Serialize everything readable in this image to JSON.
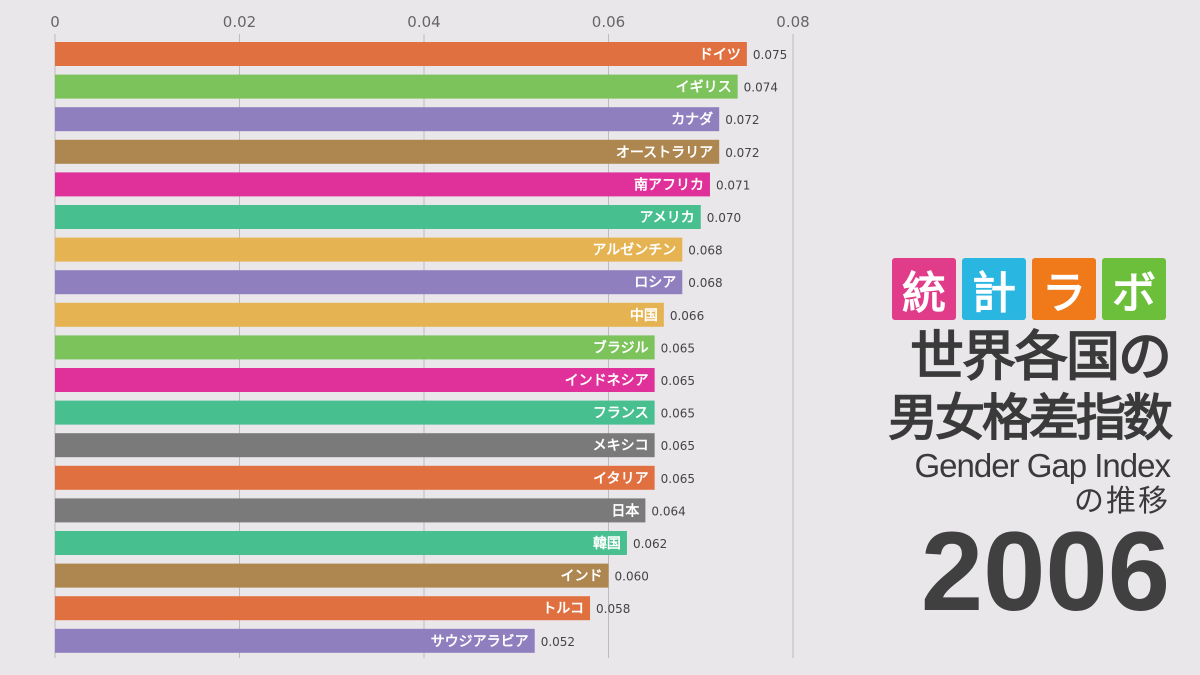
{
  "chart_data": {
    "type": "bar",
    "orientation": "horizontal",
    "xlim": [
      0,
      0.08
    ],
    "ticks": [
      "0",
      "0.02",
      "0.04",
      "0.06",
      "0.08"
    ],
    "tick_values": [
      0,
      0.02,
      0.04,
      0.06,
      0.08
    ],
    "grid": true,
    "bars": [
      {
        "label": "ドイツ",
        "value": 0.075,
        "value_text": "0.075",
        "color": "#e07040"
      },
      {
        "label": "イギリス",
        "value": 0.074,
        "value_text": "0.074",
        "color": "#7bc35a"
      },
      {
        "label": "カナダ",
        "value": 0.072,
        "value_text": "0.072",
        "color": "#8f7fbf"
      },
      {
        "label": "オーストラリア",
        "value": 0.072,
        "value_text": "0.072",
        "color": "#ad8650"
      },
      {
        "label": "南アフリカ",
        "value": 0.071,
        "value_text": "0.071",
        "color": "#e0309a"
      },
      {
        "label": "アメリカ",
        "value": 0.07,
        "value_text": "0.070",
        "color": "#47bf8f"
      },
      {
        "label": "アルゼンチン",
        "value": 0.068,
        "value_text": "0.068",
        "color": "#e5b352"
      },
      {
        "label": "ロシア",
        "value": 0.068,
        "value_text": "0.068",
        "color": "#8f7fbf"
      },
      {
        "label": "中国",
        "value": 0.066,
        "value_text": "0.066",
        "color": "#e5b352"
      },
      {
        "label": "ブラジル",
        "value": 0.065,
        "value_text": "0.065",
        "color": "#7bc35a"
      },
      {
        "label": "インドネシア",
        "value": 0.065,
        "value_text": "0.065",
        "color": "#e0309a"
      },
      {
        "label": "フランス",
        "value": 0.065,
        "value_text": "0.065",
        "color": "#47bf8f"
      },
      {
        "label": "メキシコ",
        "value": 0.065,
        "value_text": "0.065",
        "color": "#7a7a7a"
      },
      {
        "label": "イタリア",
        "value": 0.065,
        "value_text": "0.065",
        "color": "#e07040"
      },
      {
        "label": "日本",
        "value": 0.064,
        "value_text": "0.064",
        "color": "#7a7a7a"
      },
      {
        "label": "韓国",
        "value": 0.062,
        "value_text": "0.062",
        "color": "#47bf8f"
      },
      {
        "label": "インド",
        "value": 0.06,
        "value_text": "0.060",
        "color": "#ad8650"
      },
      {
        "label": "トルコ",
        "value": 0.058,
        "value_text": "0.058",
        "color": "#e07040"
      },
      {
        "label": "サウジアラビア",
        "value": 0.052,
        "value_text": "0.052",
        "color": "#8f7fbf"
      }
    ]
  },
  "logo": [
    {
      "text": "統",
      "color": "#e03c8a"
    },
    {
      "text": "計",
      "color": "#29b6e0"
    },
    {
      "text": "ラ",
      "color": "#f07a1a"
    },
    {
      "text": "ボ",
      "color": "#6cbf3a"
    }
  ],
  "title": {
    "line1": "世界各国の",
    "line2": "男女格差指数",
    "line3": "Gender Gap Index",
    "line4": "の推移"
  },
  "year": "2006"
}
